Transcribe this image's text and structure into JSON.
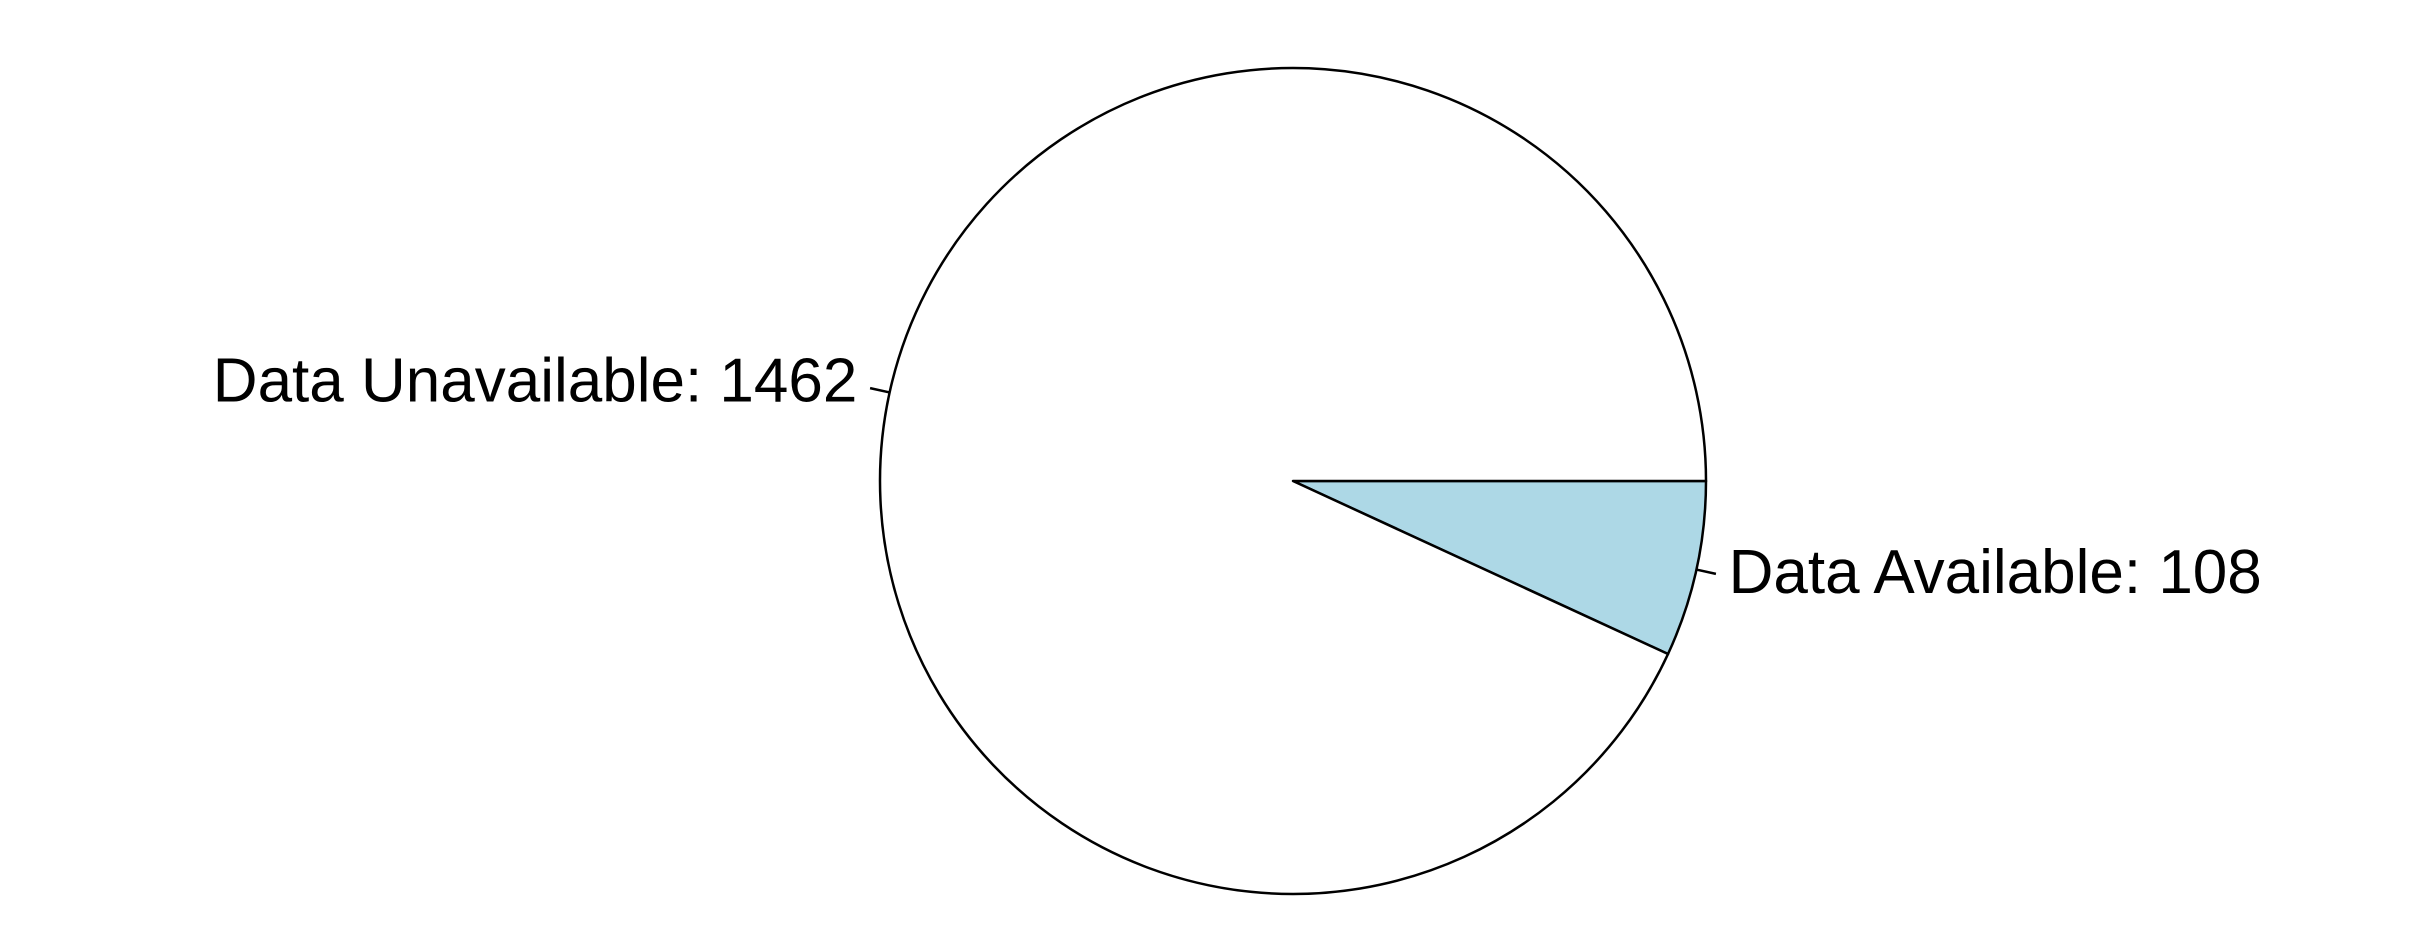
{
  "chart_data": {
    "type": "pie",
    "categories": [
      "Data Available",
      "Data Unavailable"
    ],
    "values": [
      108,
      1462
    ],
    "labels": [
      "Data Available: 108",
      "Data Unavailable: 1462"
    ],
    "colors": [
      "#add8e6",
      "#ffffff"
    ],
    "start_angle_deg": 0,
    "direction": "clockwise",
    "legend": "none"
  }
}
